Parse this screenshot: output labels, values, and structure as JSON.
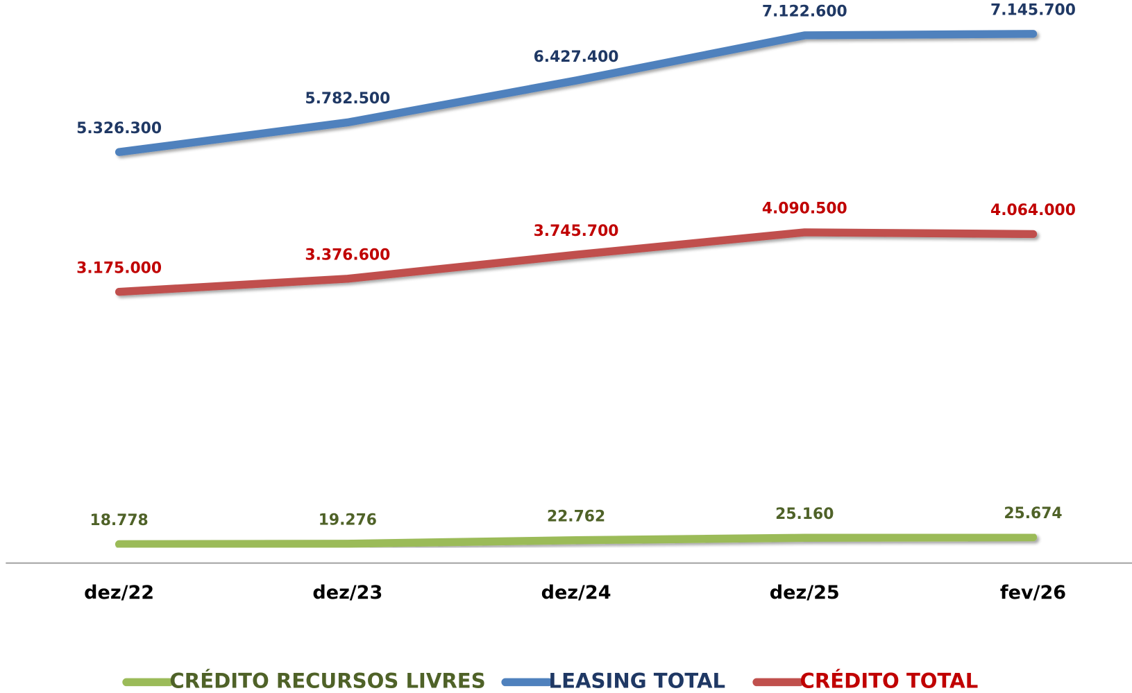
{
  "chart_data": {
    "type": "line",
    "categories": [
      "dez/22",
      "dez/23",
      "dez/24",
      "dez/25",
      "fev/26"
    ],
    "ylim": [
      -1000000,
      7500000
    ],
    "y2lim": [
      0,
      550000
    ],
    "series": [
      {
        "name": "CRÉDITO RECURSOS LIVRES",
        "color": "#9bbb59",
        "label_color": "#4f6228",
        "axis": "y2",
        "values": [
          18778,
          19276,
          22762,
          25160,
          25674
        ],
        "value_labels": [
          "18.778",
          "19.276",
          "22.762",
          "25.160",
          "25.674"
        ]
      },
      {
        "name": "LEASING TOTAL",
        "color": "#4f81bd",
        "label_color": "#1f3864",
        "values": [
          5326300,
          5782500,
          6427400,
          7122600,
          7145700
        ],
        "value_labels": [
          "5.326.300",
          "5.782.500",
          "6.427.400",
          "7.122.600",
          "7.145.700"
        ]
      },
      {
        "name": "CRÉDITO TOTAL",
        "color": "#c0504d",
        "label_color": "#c00000",
        "values": [
          3175000,
          3376600,
          3745700,
          4090500,
          4064000
        ],
        "value_labels": [
          "3.175.000",
          "3.376.600",
          "3.745.700",
          "4.090.500",
          "4.064.000"
        ]
      }
    ]
  }
}
